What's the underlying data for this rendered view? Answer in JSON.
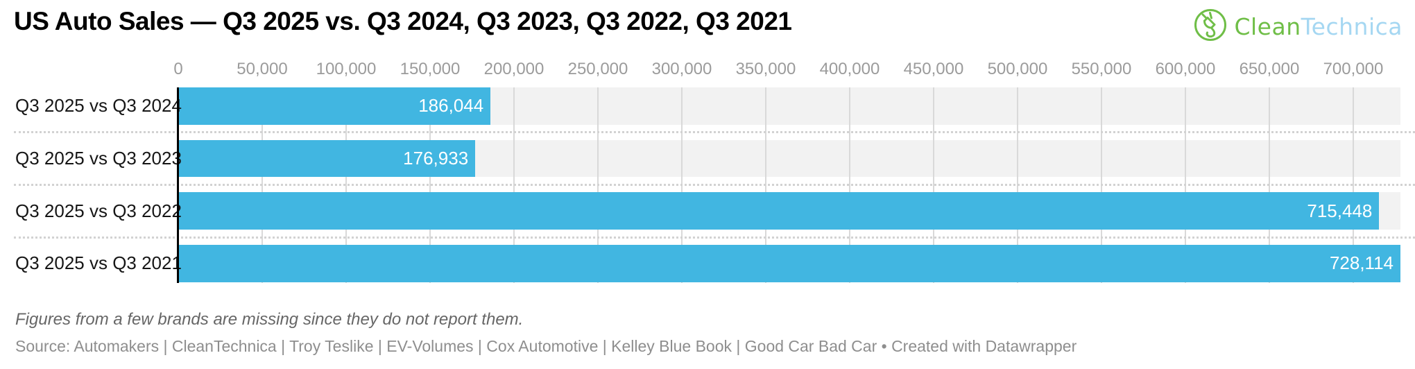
{
  "header": {
    "logo": {
      "clean": "Clean",
      "technica": "Technica",
      "green": "#6fbe47",
      "blue": "#a5d7f2"
    }
  },
  "chart_data": {
    "type": "bar",
    "orientation": "horizontal",
    "title": "US Auto Sales — Q3 2025 vs. Q3 2024, Q3 2023, Q3 2022, Q3 2021",
    "categories": [
      "Q3 2025 vs Q3 2024",
      "Q3 2025 vs Q3 2023",
      "Q3 2025 vs Q3 2022",
      "Q3 2025 vs Q3 2021"
    ],
    "values": [
      186044,
      176933,
      715448,
      728114
    ],
    "rows": [
      {
        "label": "Q3 2025 vs Q3 2024",
        "value": 186044,
        "value_label": "186,044"
      },
      {
        "label": "Q3 2025 vs Q3 2023",
        "value": 176933,
        "value_label": "176,933"
      },
      {
        "label": "Q3 2025 vs Q3 2022",
        "value": 715448,
        "value_label": "715,448"
      },
      {
        "label": "Q3 2025 vs Q3 2021",
        "value": 728114,
        "value_label": "728,114"
      }
    ],
    "ticks": [
      {
        "value": 0,
        "label": "0"
      },
      {
        "value": 50000,
        "label": "50,000"
      },
      {
        "value": 100000,
        "label": "100,000"
      },
      {
        "value": 150000,
        "label": "150,000"
      },
      {
        "value": 200000,
        "label": "200,000"
      },
      {
        "value": 250000,
        "label": "250,000"
      },
      {
        "value": 300000,
        "label": "300,000"
      },
      {
        "value": 350000,
        "label": "350,000"
      },
      {
        "value": 400000,
        "label": "400,000"
      },
      {
        "value": 450000,
        "label": "450,000"
      },
      {
        "value": 500000,
        "label": "500,000"
      },
      {
        "value": 550000,
        "label": "550,000"
      },
      {
        "value": 600000,
        "label": "600,000"
      },
      {
        "value": 650000,
        "label": "650,000"
      },
      {
        "value": 700000,
        "label": "700,000"
      }
    ],
    "xlim": [
      0,
      728114
    ],
    "xlabel": "",
    "ylabel": "",
    "grid": true,
    "legend": "none",
    "bar_color": "#41b6e1",
    "band_color": "#f2f2f2",
    "value_label_position": "inside-end",
    "note": "Figures from a few brands are missing since they do not report them.",
    "source": "Source: Automakers | CleanTechnica | Troy Teslike | EV-Volumes | Cox Automotive | Kelley Blue Book | Good Car Bad Car • Created with Datawrapper"
  }
}
